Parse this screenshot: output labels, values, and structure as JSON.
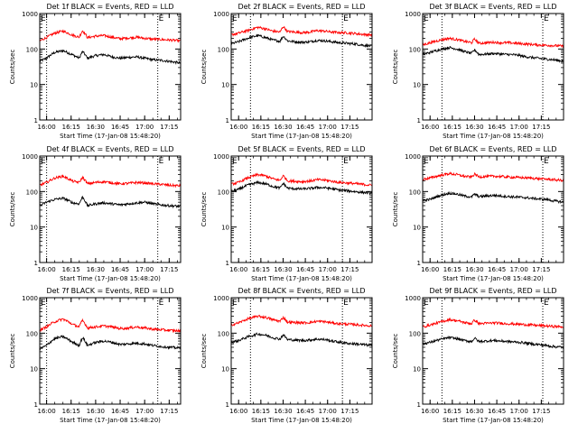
{
  "chart_data": {
    "type": "line",
    "scale": "log",
    "ylim": [
      1,
      1000
    ],
    "y_ticks": [
      1,
      10,
      100,
      1000
    ],
    "y_tick_labels": [
      "1",
      "10",
      "100",
      "1000"
    ],
    "ylabel": "Counts/sec",
    "xlabel": "Start Time (17-Jan-08 15:48:20)",
    "x_tick_labels": [
      "16:00",
      "16:15",
      "16:30",
      "16:45",
      "17:00",
      "17:15"
    ],
    "corner_letter": "E",
    "series_colors": {
      "events": "#000000",
      "lld": "#ff0000"
    },
    "panels": [
      {
        "title": "Det 1f BLACK = Events, RED = LLD",
        "x_start_min": 15.8,
        "x_end_min": 102,
        "dotted_x_min": [
          20,
          88
        ],
        "x_ticks_min": [
          20,
          35,
          50,
          65,
          80,
          95
        ],
        "series": [
          {
            "key": "events",
            "x": [
              15.8,
              20,
              25,
              30,
              36,
              40,
              42,
              45,
              50,
              55,
              60,
              65,
              70,
              75,
              80,
              85,
              90,
              95,
              102
            ],
            "values": [
              45,
              55,
              80,
              90,
              68,
              55,
              85,
              55,
              65,
              70,
              60,
              55,
              58,
              60,
              55,
              50,
              48,
              45,
              40
            ]
          },
          {
            "key": "lld",
            "x": [
              15.8,
              20,
              25,
              30,
              36,
              40,
              42,
              45,
              50,
              55,
              60,
              65,
              70,
              75,
              80,
              85,
              90,
              95,
              102
            ],
            "values": [
              170,
              210,
              280,
              320,
              245,
              215,
              330,
              210,
              230,
              240,
              215,
              195,
              205,
              215,
              200,
              190,
              185,
              180,
              170
            ]
          }
        ]
      },
      {
        "title": "Det 2f BLACK = Events, RED = LLD",
        "x_start_min": 7,
        "x_end_min": 102,
        "dotted_x_min": [
          20,
          82
        ],
        "x_ticks_min": [
          12,
          27,
          42,
          57,
          72,
          87
        ],
        "series": [
          {
            "key": "events",
            "x": [
              7,
              12,
              18,
              25,
              30,
              35,
              40,
              42,
              45,
              50,
              55,
              60,
              65,
              70,
              75,
              80,
              85,
              90,
              95,
              102
            ],
            "values": [
              140,
              160,
              200,
              240,
              210,
              180,
              165,
              230,
              170,
              160,
              155,
              160,
              175,
              170,
              160,
              150,
              145,
              140,
              130,
              120
            ]
          },
          {
            "key": "lld",
            "x": [
              7,
              12,
              18,
              25,
              30,
              35,
              40,
              42,
              45,
              50,
              55,
              60,
              65,
              70,
              75,
              80,
              85,
              90,
              95,
              102
            ],
            "values": [
              250,
              280,
              330,
              410,
              370,
              320,
              300,
              430,
              310,
              300,
              290,
              300,
              330,
              320,
              300,
              290,
              285,
              275,
              260,
              250
            ]
          }
        ]
      },
      {
        "title": "Det 3f BLACK = Events, RED = LLD",
        "x_start_min": 7,
        "x_end_min": 102,
        "dotted_x_min": [
          20,
          88
        ],
        "x_ticks_min": [
          12,
          27,
          42,
          57,
          72,
          87
        ],
        "series": [
          {
            "key": "events",
            "x": [
              7,
              12,
              18,
              25,
              30,
              35,
              40,
              42,
              45,
              50,
              55,
              60,
              65,
              70,
              75,
              80,
              85,
              90,
              95,
              102
            ],
            "values": [
              70,
              80,
              95,
              110,
              100,
              85,
              75,
              95,
              70,
              72,
              75,
              72,
              70,
              68,
              62,
              58,
              55,
              52,
              50,
              45
            ]
          },
          {
            "key": "lld",
            "x": [
              7,
              12,
              18,
              25,
              30,
              35,
              40,
              42,
              45,
              50,
              55,
              60,
              65,
              70,
              75,
              80,
              85,
              90,
              95,
              102
            ],
            "values": [
              130,
              150,
              175,
              200,
              185,
              165,
              150,
              190,
              145,
              150,
              155,
              150,
              150,
              145,
              140,
              135,
              130,
              128,
              125,
              120
            ]
          }
        ]
      },
      {
        "title": "Det 4f BLACK = Events, RED = LLD",
        "x_start_min": 15.8,
        "x_end_min": 102,
        "dotted_x_min": [
          20,
          88
        ],
        "x_ticks_min": [
          20,
          35,
          50,
          65,
          80,
          95
        ],
        "series": [
          {
            "key": "events",
            "x": [
              15.8,
              20,
              25,
              30,
              36,
              40,
              42,
              45,
              50,
              55,
              60,
              65,
              70,
              75,
              80,
              85,
              90,
              95,
              102
            ],
            "values": [
              40,
              50,
              60,
              65,
              48,
              45,
              70,
              40,
              45,
              48,
              45,
              42,
              45,
              48,
              50,
              45,
              42,
              40,
              38
            ]
          },
          {
            "key": "lld",
            "x": [
              15.8,
              20,
              25,
              30,
              36,
              40,
              42,
              45,
              50,
              55,
              60,
              65,
              70,
              75,
              80,
              85,
              90,
              95,
              102
            ],
            "values": [
              150,
              180,
              240,
              270,
              195,
              180,
              250,
              165,
              180,
              190,
              175,
              165,
              170,
              180,
              175,
              165,
              160,
              150,
              145
            ]
          }
        ]
      },
      {
        "title": "Det 5f BLACK = Events, RED = LLD",
        "x_start_min": 7,
        "x_end_min": 102,
        "dotted_x_min": [
          20,
          82
        ],
        "x_ticks_min": [
          12,
          27,
          42,
          57,
          72,
          87
        ],
        "series": [
          {
            "key": "events",
            "x": [
              7,
              12,
              18,
              25,
              30,
              35,
              40,
              42,
              45,
              50,
              55,
              60,
              65,
              70,
              75,
              80,
              85,
              90,
              95,
              102
            ],
            "values": [
              100,
              115,
              150,
              180,
              165,
              140,
              125,
              170,
              125,
              120,
              118,
              122,
              130,
              128,
              120,
              110,
              105,
              100,
              95,
              90
            ]
          },
          {
            "key": "lld",
            "x": [
              7,
              12,
              18,
              25,
              30,
              35,
              40,
              42,
              45,
              50,
              55,
              60,
              65,
              70,
              75,
              80,
              85,
              90,
              95,
              102
            ],
            "values": [
              160,
              180,
              240,
              300,
              275,
              230,
              205,
              280,
              200,
              195,
              190,
              198,
              215,
              210,
              195,
              180,
              175,
              168,
              160,
              150
            ]
          }
        ]
      },
      {
        "title": "Det 6f BLACK = Events, RED = LLD",
        "x_start_min": 7,
        "x_end_min": 102,
        "dotted_x_min": [
          20,
          88
        ],
        "x_ticks_min": [
          12,
          27,
          42,
          57,
          72,
          87
        ],
        "series": [
          {
            "key": "events",
            "x": [
              7,
              12,
              18,
              25,
              30,
              35,
              40,
              42,
              45,
              50,
              55,
              60,
              65,
              70,
              75,
              80,
              85,
              90,
              95,
              102
            ],
            "values": [
              55,
              60,
              75,
              90,
              85,
              75,
              70,
              85,
              72,
              75,
              78,
              75,
              72,
              70,
              68,
              65,
              62,
              60,
              55,
              50
            ]
          },
          {
            "key": "lld",
            "x": [
              7,
              12,
              18,
              25,
              30,
              35,
              40,
              42,
              45,
              50,
              55,
              60,
              65,
              70,
              75,
              80,
              85,
              90,
              95,
              102
            ],
            "values": [
              220,
              240,
              280,
              320,
              300,
              270,
              255,
              310,
              260,
              265,
              270,
              265,
              255,
              250,
              245,
              240,
              230,
              225,
              215,
              205
            ]
          }
        ]
      },
      {
        "title": "Det 7f BLACK = Events, RED = LLD",
        "x_start_min": 15.8,
        "x_end_min": 102,
        "dotted_x_min": [
          20,
          88
        ],
        "x_ticks_min": [
          20,
          35,
          50,
          65,
          80,
          95
        ],
        "series": [
          {
            "key": "events",
            "x": [
              15.8,
              20,
              25,
              30,
              36,
              40,
              42,
              45,
              50,
              55,
              60,
              65,
              70,
              75,
              80,
              85,
              90,
              95,
              102
            ],
            "values": [
              35,
              45,
              70,
              80,
              55,
              45,
              75,
              45,
              55,
              60,
              55,
              48,
              50,
              52,
              50,
              45,
              42,
              40,
              38
            ]
          },
          {
            "key": "lld",
            "x": [
              15.8,
              20,
              25,
              30,
              36,
              40,
              42,
              45,
              50,
              55,
              60,
              65,
              70,
              75,
              80,
              85,
              90,
              95,
              102
            ],
            "values": [
              120,
              150,
              210,
              250,
              175,
              150,
              230,
              140,
              150,
              160,
              150,
              135,
              140,
              150,
              140,
              130,
              125,
              120,
              115
            ]
          }
        ]
      },
      {
        "title": "Det 8f BLACK = Events, RED = LLD",
        "x_start_min": 7,
        "x_end_min": 102,
        "dotted_x_min": [
          20,
          82
        ],
        "x_ticks_min": [
          12,
          27,
          42,
          57,
          72,
          87
        ],
        "series": [
          {
            "key": "events",
            "x": [
              7,
              12,
              18,
              25,
              30,
              35,
              40,
              42,
              45,
              50,
              55,
              60,
              65,
              70,
              75,
              80,
              85,
              90,
              95,
              102
            ],
            "values": [
              55,
              62,
              78,
              95,
              88,
              75,
              68,
              90,
              66,
              64,
              62,
              64,
              68,
              66,
              60,
              56,
              52,
              50,
              48,
              45
            ]
          },
          {
            "key": "lld",
            "x": [
              7,
              12,
              18,
              25,
              30,
              35,
              40,
              42,
              45,
              50,
              55,
              60,
              65,
              70,
              75,
              80,
              85,
              90,
              95,
              102
            ],
            "values": [
              170,
              195,
              250,
              300,
              280,
              240,
              215,
              280,
              205,
              200,
              195,
              200,
              215,
              210,
              195,
              185,
              180,
              175,
              168,
              160
            ]
          }
        ]
      },
      {
        "title": "Det 9f BLACK = Events, RED = LLD",
        "x_start_min": 7,
        "x_end_min": 102,
        "dotted_x_min": [
          20,
          88
        ],
        "x_ticks_min": [
          12,
          27,
          42,
          57,
          72,
          87
        ],
        "series": [
          {
            "key": "events",
            "x": [
              7,
              12,
              18,
              25,
              30,
              35,
              40,
              42,
              45,
              50,
              55,
              60,
              65,
              70,
              75,
              80,
              85,
              90,
              95,
              102
            ],
            "values": [
              50,
              55,
              65,
              75,
              70,
              62,
              58,
              72,
              58,
              60,
              62,
              60,
              58,
              56,
              54,
              50,
              48,
              45,
              42,
              40
            ]
          },
          {
            "key": "lld",
            "x": [
              7,
              12,
              18,
              25,
              30,
              35,
              40,
              42,
              45,
              50,
              55,
              60,
              65,
              70,
              75,
              80,
              85,
              90,
              95,
              102
            ],
            "values": [
              150,
              170,
              200,
              240,
              225,
              200,
              185,
              235,
              185,
              190,
              195,
              190,
              185,
              180,
              175,
              170,
              165,
              160,
              155,
              150
            ]
          }
        ]
      }
    ]
  }
}
